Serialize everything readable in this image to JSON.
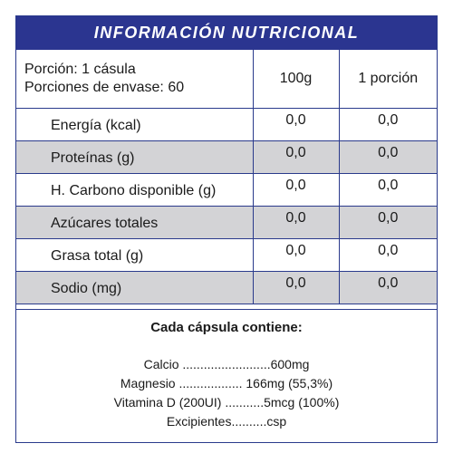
{
  "header": {
    "title": "INFORMACIÓN NUTRICIONAL"
  },
  "serving": {
    "portion": "Porción: 1 cásula",
    "servings_per_container": "Porciones de envase: 60",
    "col_100g": "100g",
    "col_portion": "1 porción"
  },
  "rows": [
    {
      "name": "Energía (kcal)",
      "per100": "0,0",
      "perPortion": "0,0"
    },
    {
      "name": "Proteínas (g)",
      "per100": "0,0",
      "perPortion": "0,0"
    },
    {
      "name": "H. Carbono disponible (g)",
      "per100": "0,0",
      "perPortion": "0,0"
    },
    {
      "name": "Azúcares totales",
      "per100": "0,0",
      "perPortion": "0,0"
    },
    {
      "name": "Grasa total (g)",
      "per100": "0,0",
      "perPortion": "0,0"
    },
    {
      "name": "Sodio (mg)",
      "per100": "0,0",
      "perPortion": "0,0"
    }
  ],
  "capsule": {
    "title": "Cada cápsula contiene:",
    "items": [
      "Calcio .........................600mg",
      "Magnesio .................. 166mg (55,3%)",
      "Vitamina D (200UI) ...........5mcg (100%)",
      "Excipientes..........csp"
    ]
  },
  "colors": {
    "header_bg": "#2b3590",
    "border": "#2a3a8c",
    "shade": "#d3d3d6"
  }
}
